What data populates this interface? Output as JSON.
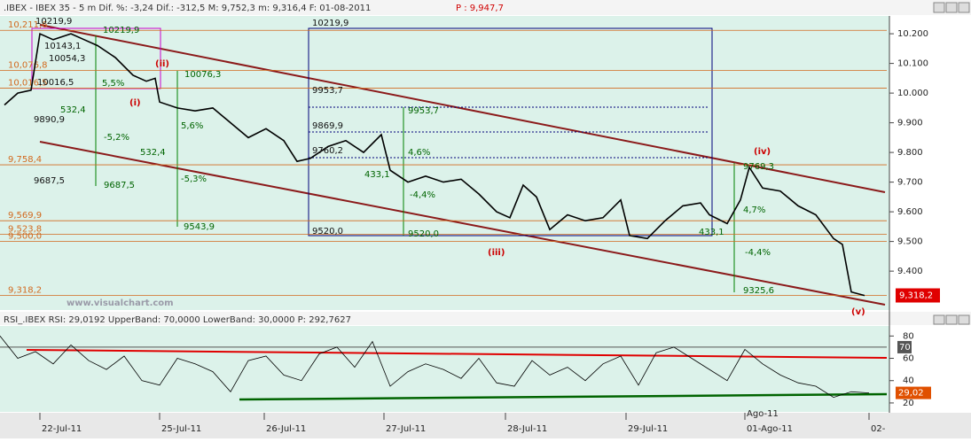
{
  "chart_data": [
    {
      "type": "line",
      "title": ".IBEX - IBEX 35 -  5 m Dif. %: -3,24 Dif.: -312,5 M: 9,752,3 m: 9,316,4 F: 01-08-2011",
      "subtitle": "P : 9,947,7",
      "x": [
        5,
        20,
        35,
        45,
        60,
        80,
        95,
        110,
        130,
        150,
        165,
        175,
        180,
        200,
        220,
        240,
        260,
        280,
        300,
        320,
        335,
        350,
        370,
        390,
        410,
        430,
        440,
        460,
        480,
        500,
        520,
        540,
        560,
        575,
        590,
        605,
        620,
        640,
        660,
        680,
        700,
        710,
        730,
        750,
        770,
        790,
        800,
        820,
        835,
        845,
        860,
        880,
        900,
        920,
        940,
        950,
        960,
        975
      ],
      "series": [
        {
          "color": "#000000",
          "values": [
            9960,
            10000,
            10010,
            10200,
            10180,
            10200,
            10180,
            10160,
            10120,
            10060,
            10040,
            10050,
            9970,
            9950,
            9940,
            9950,
            9900,
            9850,
            9880,
            9840,
            9770,
            9780,
            9820,
            9840,
            9800,
            9860,
            9740,
            9700,
            9720,
            9700,
            9710,
            9660,
            9600,
            9580,
            9690,
            9650,
            9540,
            9590,
            9570,
            9580,
            9640,
            9520,
            9510,
            9570,
            9620,
            9630,
            9590,
            9560,
            9640,
            9750,
            9680,
            9670,
            9620,
            9590,
            9510,
            9490,
            9330,
            9318
          ]
        }
      ],
      "xlim": [
        0,
        1000
      ],
      "ylim": [
        9269,
        10260
      ],
      "yticks": [
        {
          "value": 10200,
          "label": "10.200"
        },
        {
          "value": 10100,
          "label": "10.100"
        },
        {
          "value": 10000,
          "label": "10.000"
        },
        {
          "value": 9900,
          "label": "9.900"
        },
        {
          "value": 9800,
          "label": "9.800"
        },
        {
          "value": 9700,
          "label": "9.700"
        },
        {
          "value": 9600,
          "label": "9.600"
        },
        {
          "value": 9500,
          "label": "9.500"
        },
        {
          "value": 9400,
          "label": "9.400"
        }
      ],
      "xticks": [
        {
          "value": 45,
          "label": "22-Jul-11"
        },
        {
          "value": 180,
          "label": "25-Jul-11"
        },
        {
          "value": 298,
          "label": "26-Jul-11"
        },
        {
          "value": 433,
          "label": "27-Jul-11"
        },
        {
          "value": 570,
          "label": "28-Jul-11"
        },
        {
          "value": 706,
          "label": "29-Jul-11"
        },
        {
          "value": 840,
          "label": "01-Ago-11"
        },
        {
          "value": 980,
          "label": "02-"
        }
      ],
      "levels": [
        {
          "value": 10211.6,
          "label": "10,211,6"
        },
        {
          "value": 10076.8,
          "label": "10,076,8"
        },
        {
          "value": 10016.5,
          "label": "10,016,5"
        },
        {
          "value": 9758.4,
          "label": "9,758,4"
        },
        {
          "value": 9569.9,
          "label": "9,569,9"
        },
        {
          "value": 9523.8,
          "label": "9,523,8"
        },
        {
          "value": 9500,
          "label": "9,500,0"
        },
        {
          "value": 9318.2,
          "label": "9,318,2"
        }
      ],
      "last_price": {
        "value": 9318.2,
        "label": "9,318,2"
      },
      "annotations": [
        "10219,9",
        "10143,1",
        "10054,3",
        "10016,5",
        "10219,9",
        "10076,3",
        "5,5%",
        "532,4",
        "-5,2%",
        "9890,9",
        "9687,5",
        "9687,5",
        "5,6%",
        "532,4",
        "-5,3%",
        "9543,9",
        "(i)",
        "(ii)",
        "(iii)",
        "(iv)",
        "(v)",
        "10219,9",
        "9953,7",
        "9953,7",
        "9869,9",
        "9760,2",
        "4,6%",
        "433,1",
        "-4,4%",
        "9520,0",
        "9520,0",
        "9769,3",
        "4,7%",
        "433,1",
        "-4,4%",
        "9325,6",
        "www.visualchart.com"
      ]
    },
    {
      "type": "line",
      "title": "RSI_.IBEX RSI: 29,0192 UpperBand: 70,0000 LowerBand: 30,0000 P: 292,7627",
      "x": [
        0,
        20,
        40,
        60,
        80,
        100,
        120,
        140,
        160,
        180,
        200,
        220,
        240,
        260,
        280,
        300,
        320,
        340,
        360,
        380,
        400,
        420,
        440,
        460,
        480,
        500,
        520,
        540,
        560,
        580,
        600,
        620,
        640,
        660,
        680,
        700,
        720,
        740,
        760,
        780,
        800,
        820,
        840,
        860,
        880,
        900,
        920,
        940,
        960,
        980
      ],
      "series": [
        {
          "color": "#000000",
          "values": [
            80,
            60,
            66,
            55,
            72,
            58,
            50,
            62,
            40,
            36,
            60,
            55,
            48,
            30,
            58,
            62,
            45,
            40,
            64,
            70,
            52,
            75,
            35,
            48,
            55,
            50,
            42,
            60,
            38,
            35,
            58,
            45,
            52,
            40,
            55,
            62,
            36,
            65,
            70,
            60,
            50,
            40,
            68,
            55,
            45,
            38,
            35,
            25,
            30,
            29
          ]
        }
      ],
      "xlim": [
        0,
        1000
      ],
      "ylim": [
        12,
        89
      ],
      "yticks": [
        80,
        60,
        40,
        20
      ],
      "upper_band": 70,
      "last": {
        "value": 29.02,
        "label": "29,02"
      },
      "annotations": [
        "Ago-11"
      ]
    }
  ]
}
